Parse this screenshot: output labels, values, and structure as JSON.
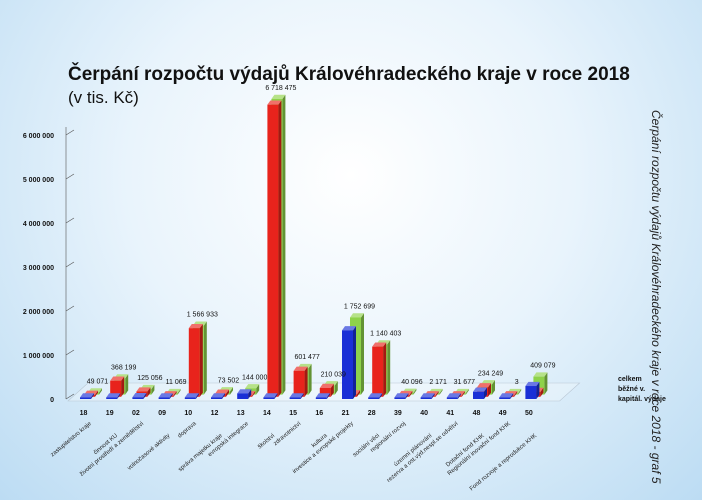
{
  "chart_data": {
    "type": "bar",
    "title": "Čerpání rozpočtu výdajů Královéhradeckého kraje v roce 2018",
    "subtitle": "(v tis. Kč)",
    "side_title": "Čerpání rozpočtu výdajů Královéhradeckého kraje v roce 2018 - graf 5",
    "ylim": [
      0,
      6500000
    ],
    "y_ticks": [
      {
        "value": 0,
        "label": "0"
      },
      {
        "value": 1000000,
        "label": "1 000 000"
      },
      {
        "value": 2000000,
        "label": "2 000 000"
      },
      {
        "value": 3000000,
        "label": "3 000 000"
      },
      {
        "value": 4000000,
        "label": "4 000 000"
      },
      {
        "value": 5000000,
        "label": "5 000 000"
      },
      {
        "value": 6000000,
        "label": "6 000 000"
      }
    ],
    "categories": [
      {
        "code": "18",
        "name": "zastupitelstvo kraje"
      },
      {
        "code": "19",
        "name": "činnost KU"
      },
      {
        "code": "02",
        "name": "životní prostředí a zemědělství"
      },
      {
        "code": "09",
        "name": "volnočasové aktivity"
      },
      {
        "code": "10",
        "name": "doprava"
      },
      {
        "code": "12",
        "name": "správa majetku kraje"
      },
      {
        "code": "13",
        "name": "evropská integrace"
      },
      {
        "code": "14",
        "name": "školství"
      },
      {
        "code": "15",
        "name": "zdravotnictví"
      },
      {
        "code": "16",
        "name": "kultura"
      },
      {
        "code": "21",
        "name": "investice a evropské projekty"
      },
      {
        "code": "28",
        "name": "sociální věci"
      },
      {
        "code": "39",
        "name": "regionální rozvoj"
      },
      {
        "code": "40",
        "name": "územní plánování"
      },
      {
        "code": "41",
        "name": "rezerva a ost.výd.nespl.se odvětví"
      },
      {
        "code": "48",
        "name": "Dotační fond KHK"
      },
      {
        "code": "49",
        "name": "Regionální inovační fond KHK"
      },
      {
        "code": "50",
        "name": "Fond rozvoje a reprodukce KHK"
      }
    ],
    "series": [
      {
        "name": "kapitál. výdaje",
        "color": "#1a2fd6",
        "values": [
          0,
          0,
          40000,
          0,
          0,
          0,
          125000,
          0,
          0,
          0,
          1560000,
          0,
          0,
          0,
          0,
          165000,
          0,
          295000
        ]
      },
      {
        "name": "běžné v.",
        "color": "#e8231c",
        "values": [
          45000,
          365000,
          120000,
          10000,
          1560000,
          70000,
          0,
          6640000,
          590000,
          200000,
          55000,
          1140000,
          38000,
          2000,
          30000,
          215000,
          2000,
          110000
        ]
      },
      {
        "name": "celkem",
        "color": "#8ed24a",
        "values": [
          49071,
          368199,
          125056,
          11069,
          1566933,
          73502,
          144000,
          6718475,
          601477,
          210039,
          1752699,
          1140403,
          40096,
          2171,
          31677,
          234249,
          3,
          409079
        ],
        "labels": [
          "49 071",
          "368 199",
          "125 056",
          "11 069",
          "1 566 933",
          "73 502",
          "144 000",
          "6 718 475",
          "601 477",
          "210 039",
          "1 752 699",
          "1 140 403",
          "40 096",
          "2 171",
          "31 677",
          "234 249",
          "3",
          "409 079"
        ]
      }
    ],
    "grid": false,
    "legend": "right"
  }
}
